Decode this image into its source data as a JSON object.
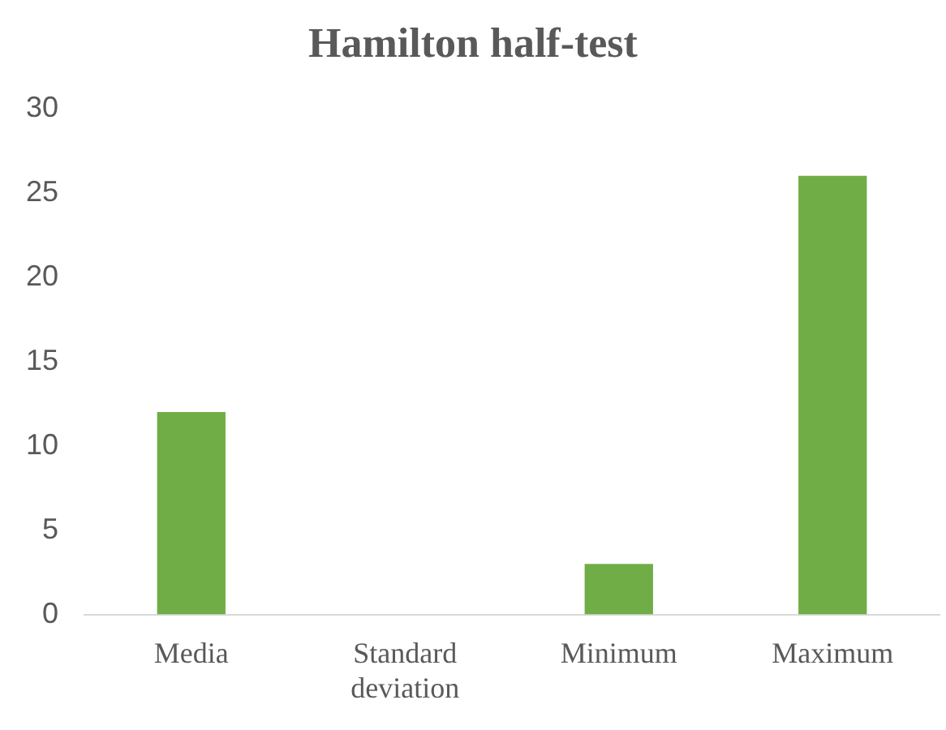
{
  "chart_data": {
    "type": "bar",
    "title": "Hamilton half-test",
    "categories": [
      "Media",
      "Standard deviation",
      "Minimum",
      "Maximum"
    ],
    "values": [
      12,
      0,
      3,
      26
    ],
    "color": "#70ad47",
    "ylim": [
      0,
      30
    ],
    "yticks": [
      0,
      5,
      10,
      15,
      20,
      25,
      30
    ],
    "grid": false,
    "legend": false
  }
}
